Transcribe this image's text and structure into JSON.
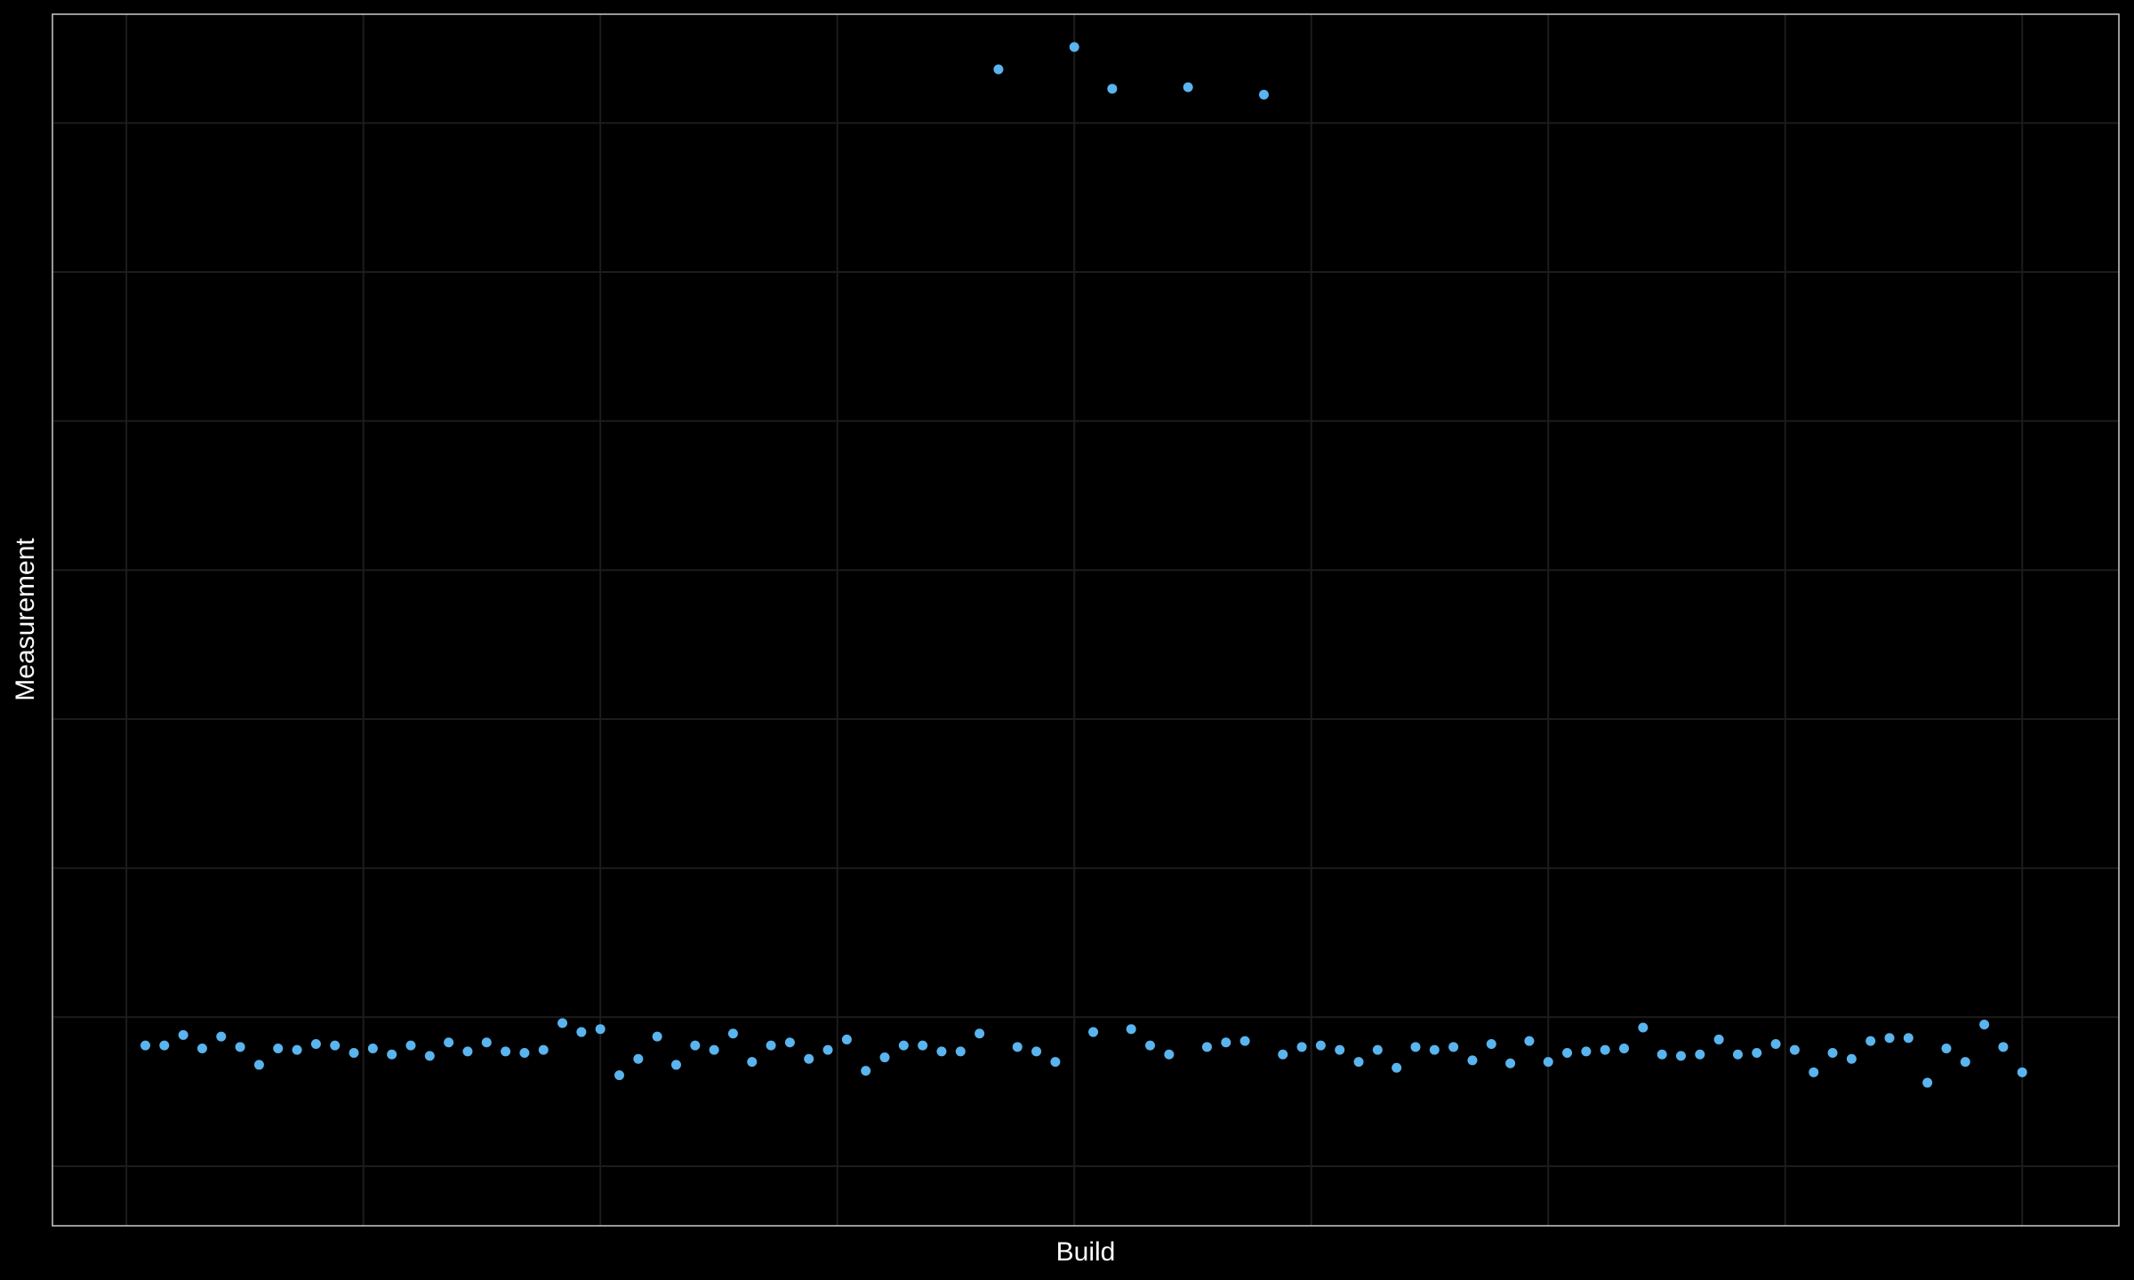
{
  "chart_data": {
    "type": "scatter",
    "title": "",
    "xlabel": "Build",
    "ylabel": "Measurement",
    "grid": true,
    "legend": "none",
    "xlim": [
      -3.9,
      105.1
    ],
    "ylim": [
      -0.4,
      7.73
    ],
    "x_gridlines": [
      0,
      12.5,
      25,
      37.5,
      50,
      62.5,
      75,
      87.5,
      100
    ],
    "y_gridlines": [
      0,
      1,
      2,
      3,
      4,
      5,
      6,
      7
    ],
    "colors": {
      "background": "#000000",
      "panel_border": "#cccccc",
      "grid": "#1c1c1c",
      "point": "#5ab4ee",
      "text": "#ffffff"
    },
    "series": [
      {
        "x": [
          1,
          2,
          3,
          4,
          5,
          6,
          7,
          8,
          9,
          10,
          11,
          12,
          13,
          14,
          15,
          16,
          17,
          18,
          19,
          20,
          21,
          22,
          23,
          24,
          25,
          26,
          27,
          28,
          29,
          30,
          31,
          32,
          33,
          34,
          35,
          36,
          37,
          38,
          39,
          40,
          41,
          42,
          43,
          44,
          45,
          46,
          47,
          48,
          49,
          50,
          51,
          52,
          53,
          54,
          55,
          56,
          57,
          58,
          59,
          60,
          61,
          62,
          63,
          64,
          65,
          66,
          67,
          68,
          69,
          70,
          71,
          72,
          73,
          74,
          75,
          76,
          77,
          78,
          79,
          80,
          81,
          82,
          83,
          84,
          85,
          86,
          87,
          88,
          89,
          90,
          91,
          92,
          93,
          94,
          95,
          96,
          97,
          98,
          99,
          100
        ],
        "y": [
          0.81,
          0.81,
          0.88,
          0.79,
          0.87,
          0.8,
          0.68,
          0.79,
          0.78,
          0.82,
          0.81,
          0.76,
          0.79,
          0.75,
          0.81,
          0.74,
          0.83,
          0.77,
          0.83,
          0.77,
          0.76,
          0.78,
          0.96,
          0.9,
          0.92,
          0.61,
          0.72,
          0.87,
          0.68,
          0.81,
          0.78,
          0.89,
          0.7,
          0.81,
          0.83,
          0.72,
          0.78,
          0.85,
          0.64,
          0.73,
          0.81,
          0.81,
          0.77,
          0.77,
          0.89,
          7.36,
          0.8,
          0.77,
          0.7,
          7.51,
          0.9,
          7.23,
          0.92,
          0.81,
          0.75,
          7.24,
          0.8,
          0.83,
          0.84,
          7.19,
          0.75,
          0.8,
          0.81,
          0.78,
          0.7,
          0.78,
          0.66,
          0.8,
          0.78,
          0.8,
          0.71,
          0.82,
          0.69,
          0.84,
          0.7,
          0.76,
          0.77,
          0.78,
          0.79,
          0.93,
          0.75,
          0.74,
          0.75,
          0.85,
          0.75,
          0.76,
          0.82,
          0.78,
          0.63,
          0.76,
          0.72,
          0.84,
          0.86,
          0.86,
          0.56,
          0.79,
          0.7,
          0.95,
          0.8,
          0.63
        ]
      }
    ]
  }
}
